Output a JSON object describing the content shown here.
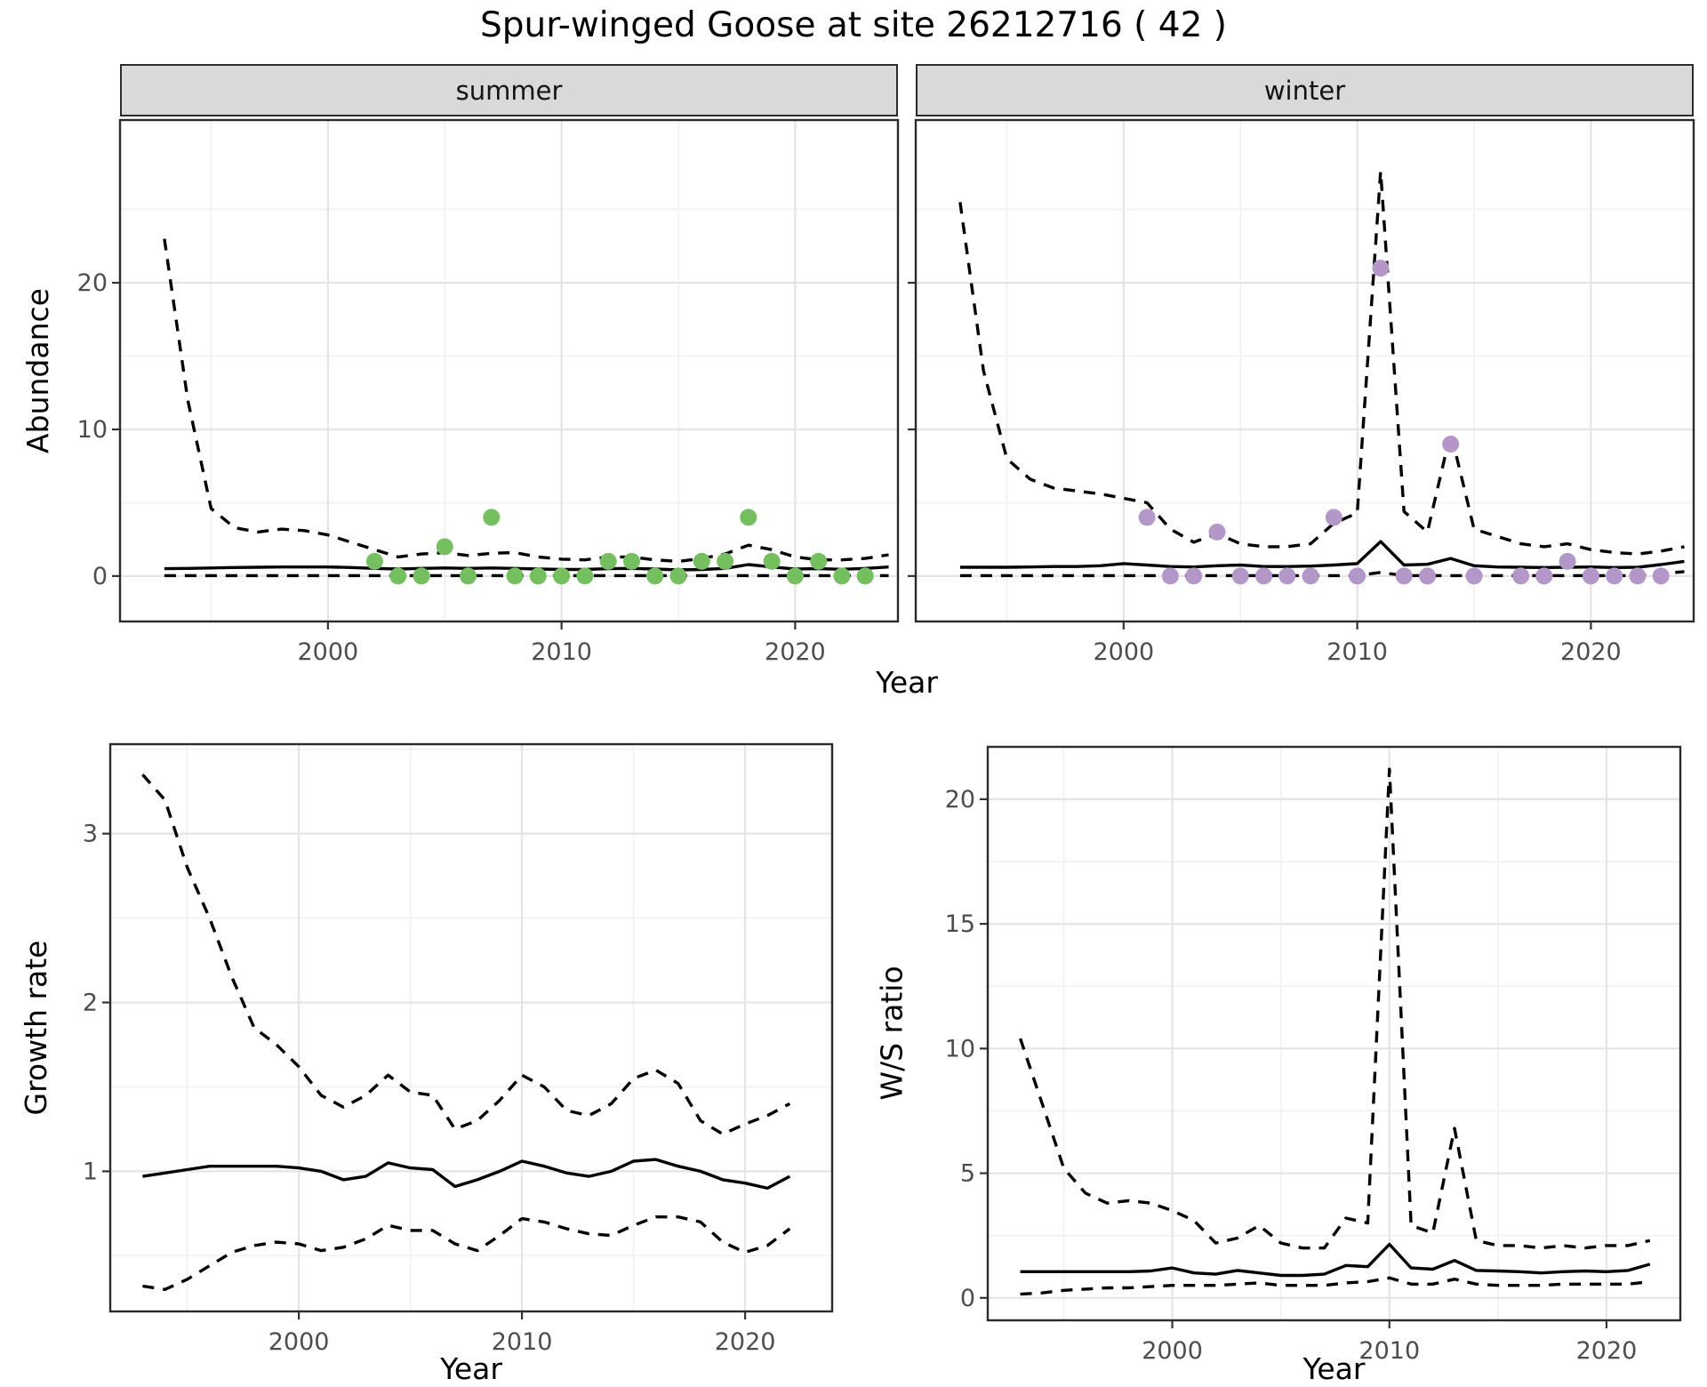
{
  "title": "Spur-winged Goose at site 26212716 ( 42 )",
  "facets": {
    "summer": "summer",
    "winter": "winter"
  },
  "axis_titles": {
    "abundance": "Abundance",
    "year_top": "Year",
    "growth_rate": "Growth rate",
    "year_bottom_left": "Year",
    "ws_ratio": "W/S ratio",
    "year_bottom_right": "Year"
  },
  "colors": {
    "summer_point": "#74c05e",
    "winter_point": "#b497c9",
    "line": "#000000",
    "panel_border": "#2b2b2b",
    "grid_major": "#e4e4e4",
    "grid_minor": "#f1f1f1",
    "tick_text": "#4d4d4d",
    "strip_bg": "#d9d9d9"
  },
  "chart_data": [
    {
      "id": "abundance-summer",
      "type": "line",
      "facet": "summer",
      "xlabel": "Year",
      "ylabel": "Abundance",
      "xlim": [
        1991.1,
        2024.4
      ],
      "ylim": [
        -3.1,
        31.1
      ],
      "xticks": [
        2000,
        2010,
        2020
      ],
      "xticks_minor": [
        1995,
        2005,
        2015
      ],
      "yticks": [
        0,
        10,
        20
      ],
      "yticks_minor": [
        5,
        15,
        25
      ],
      "ytick_labels": true,
      "x": [
        1993,
        1994,
        1995,
        1996,
        1997,
        1998,
        1999,
        2000,
        2001,
        2002,
        2003,
        2004,
        2005,
        2006,
        2007,
        2008,
        2009,
        2010,
        2011,
        2012,
        2013,
        2014,
        2015,
        2016,
        2017,
        2018,
        2019,
        2020,
        2021,
        2022,
        2023,
        2024
      ],
      "series": [
        {
          "name": "fit",
          "style": "solid",
          "values": [
            0.5,
            0.52,
            0.55,
            0.58,
            0.6,
            0.62,
            0.62,
            0.62,
            0.58,
            0.52,
            0.48,
            0.52,
            0.55,
            0.52,
            0.55,
            0.52,
            0.48,
            0.45,
            0.45,
            0.5,
            0.52,
            0.48,
            0.42,
            0.45,
            0.52,
            0.78,
            0.62,
            0.48,
            0.5,
            0.46,
            0.52,
            0.62
          ]
        },
        {
          "name": "upper_ci",
          "style": "dashed",
          "values": [
            23,
            12,
            4.6,
            3.3,
            3.0,
            3.2,
            3.1,
            2.8,
            2.3,
            1.8,
            1.3,
            1.5,
            1.6,
            1.4,
            1.55,
            1.6,
            1.3,
            1.15,
            1.1,
            1.3,
            1.3,
            1.1,
            1.0,
            1.2,
            1.5,
            2.1,
            1.8,
            1.3,
            1.1,
            1.1,
            1.2,
            1.45
          ]
        },
        {
          "name": "lower_ci",
          "style": "dashed",
          "values": [
            0.03,
            0.03,
            0.03,
            0.03,
            0.03,
            0.03,
            0.03,
            0.03,
            0.03,
            0.03,
            0.03,
            0.03,
            0.03,
            0.03,
            0.03,
            0.03,
            0.03,
            0.03,
            0.03,
            0.03,
            0.03,
            0.03,
            0.03,
            0.03,
            0.03,
            0.03,
            0.03,
            0.03,
            0.03,
            0.03,
            0.03,
            0.03
          ]
        }
      ],
      "points": [
        [
          2002,
          1
        ],
        [
          2003,
          0
        ],
        [
          2004,
          0
        ],
        [
          2005,
          2
        ],
        [
          2006,
          0
        ],
        [
          2007,
          4
        ],
        [
          2008,
          0
        ],
        [
          2009,
          0
        ],
        [
          2010,
          0
        ],
        [
          2011,
          0
        ],
        [
          2012,
          1
        ],
        [
          2013,
          1
        ],
        [
          2014,
          0
        ],
        [
          2015,
          0
        ],
        [
          2016,
          1
        ],
        [
          2017,
          1
        ],
        [
          2018,
          4
        ],
        [
          2019,
          1
        ],
        [
          2020,
          0
        ],
        [
          2021,
          1
        ],
        [
          2022,
          0
        ],
        [
          2023,
          0
        ]
      ],
      "point_color": "#74c05e"
    },
    {
      "id": "abundance-winter",
      "type": "line",
      "facet": "winter",
      "xlabel": "Year",
      "ylabel": "Abundance",
      "xlim": [
        1991.1,
        2024.4
      ],
      "ylim": [
        -3.1,
        31.1
      ],
      "xticks": [
        2000,
        2010,
        2020
      ],
      "xticks_minor": [
        1995,
        2005,
        2015
      ],
      "yticks": [
        0,
        10,
        20
      ],
      "yticks_minor": [
        5,
        15,
        25
      ],
      "ytick_labels": false,
      "x": [
        1993,
        1994,
        1995,
        1996,
        1997,
        1998,
        1999,
        2000,
        2001,
        2002,
        2003,
        2004,
        2005,
        2006,
        2007,
        2008,
        2009,
        2010,
        2011,
        2012,
        2013,
        2014,
        2015,
        2016,
        2017,
        2018,
        2019,
        2020,
        2021,
        2022,
        2023,
        2024
      ],
      "series": [
        {
          "name": "fit",
          "style": "solid",
          "values": [
            0.6,
            0.6,
            0.6,
            0.62,
            0.65,
            0.65,
            0.7,
            0.85,
            0.75,
            0.65,
            0.62,
            0.7,
            0.75,
            0.65,
            0.65,
            0.68,
            0.75,
            0.85,
            2.35,
            0.75,
            0.8,
            1.2,
            0.7,
            0.62,
            0.6,
            0.58,
            0.6,
            0.62,
            0.58,
            0.6,
            0.78,
            1.0
          ]
        },
        {
          "name": "upper_ci",
          "style": "dashed",
          "values": [
            25.5,
            14,
            8,
            6.6,
            6,
            5.8,
            5.6,
            5.3,
            5.0,
            3.2,
            2.3,
            2.9,
            2.2,
            2.0,
            2.0,
            2.2,
            3.6,
            4.3,
            27.6,
            4.4,
            3.0,
            9.8,
            3.2,
            2.7,
            2.2,
            2.0,
            2.2,
            1.8,
            1.6,
            1.5,
            1.7,
            2.0
          ]
        },
        {
          "name": "lower_ci",
          "style": "dashed",
          "values": [
            0.03,
            0.03,
            0.03,
            0.03,
            0.03,
            0.03,
            0.03,
            0.03,
            0.03,
            0.03,
            0.03,
            0.03,
            0.03,
            0.03,
            0.03,
            0.03,
            0.03,
            0.03,
            0.25,
            0.03,
            0.03,
            0.03,
            0.03,
            0.03,
            0.03,
            0.03,
            0.03,
            0.03,
            0.03,
            0.03,
            0.15,
            0.3
          ]
        }
      ],
      "points": [
        [
          2001,
          4
        ],
        [
          2002,
          0
        ],
        [
          2003,
          0
        ],
        [
          2004,
          3
        ],
        [
          2005,
          0
        ],
        [
          2006,
          0
        ],
        [
          2007,
          0
        ],
        [
          2008,
          0
        ],
        [
          2009,
          4
        ],
        [
          2010,
          0
        ],
        [
          2011,
          21
        ],
        [
          2012,
          0
        ],
        [
          2013,
          0
        ],
        [
          2014,
          9
        ],
        [
          2015,
          0
        ],
        [
          2017,
          0
        ],
        [
          2018,
          0
        ],
        [
          2019,
          1
        ],
        [
          2020,
          0
        ],
        [
          2021,
          0
        ],
        [
          2022,
          0
        ],
        [
          2023,
          0
        ]
      ],
      "point_color": "#b497c9"
    },
    {
      "id": "growth-rate",
      "type": "line",
      "xlabel": "Year",
      "ylabel": "Growth rate",
      "xlim": [
        1991.55,
        2023.9
      ],
      "ylim": [
        0.17,
        3.53
      ],
      "xticks": [
        2000,
        2010,
        2020
      ],
      "xticks_minor": [
        1995,
        2005,
        2015
      ],
      "yticks": [
        1,
        2,
        3
      ],
      "yticks_minor": [
        0.5,
        1.5,
        2.5,
        3.5
      ],
      "ytick_labels": true,
      "x": [
        1993,
        1994,
        1995,
        1996,
        1997,
        1998,
        1999,
        2000,
        2001,
        2002,
        2003,
        2004,
        2005,
        2006,
        2007,
        2008,
        2009,
        2010,
        2011,
        2012,
        2013,
        2014,
        2015,
        2016,
        2017,
        2018,
        2019,
        2020,
        2021,
        2022
      ],
      "series": [
        {
          "name": "fit",
          "style": "solid",
          "values": [
            0.97,
            0.99,
            1.01,
            1.03,
            1.03,
            1.03,
            1.03,
            1.02,
            1.0,
            0.95,
            0.97,
            1.05,
            1.02,
            1.01,
            0.91,
            0.95,
            1.0,
            1.06,
            1.03,
            0.99,
            0.97,
            1.0,
            1.06,
            1.07,
            1.03,
            1.0,
            0.95,
            0.93,
            0.9,
            0.97
          ]
        },
        {
          "name": "upper_ci",
          "style": "dashed",
          "values": [
            3.35,
            3.2,
            2.8,
            2.5,
            2.15,
            1.85,
            1.75,
            1.62,
            1.45,
            1.38,
            1.45,
            1.57,
            1.47,
            1.45,
            1.25,
            1.3,
            1.42,
            1.57,
            1.5,
            1.36,
            1.33,
            1.4,
            1.55,
            1.6,
            1.52,
            1.3,
            1.22,
            1.28,
            1.33,
            1.4
          ]
        },
        {
          "name": "lower_ci",
          "style": "dashed",
          "values": [
            0.32,
            0.3,
            0.36,
            0.44,
            0.52,
            0.56,
            0.58,
            0.57,
            0.53,
            0.55,
            0.6,
            0.68,
            0.65,
            0.65,
            0.57,
            0.53,
            0.62,
            0.72,
            0.7,
            0.66,
            0.63,
            0.62,
            0.68,
            0.73,
            0.73,
            0.7,
            0.58,
            0.52,
            0.56,
            0.66
          ]
        }
      ],
      "points": [],
      "point_color": "#74c05e"
    },
    {
      "id": "ws-ratio",
      "type": "line",
      "xlabel": "Year",
      "ylabel": "W/S ratio",
      "xlim": [
        1991.5,
        2023.4
      ],
      "ylim": [
        -0.9,
        22.1
      ],
      "xticks": [
        2000,
        2010,
        2020
      ],
      "xticks_minor": [
        1995,
        2005,
        2015
      ],
      "yticks": [
        0,
        5,
        10,
        15,
        20
      ],
      "yticks_minor": [
        2.5,
        7.5,
        12.5,
        17.5
      ],
      "ytick_labels": true,
      "x": [
        1993,
        1994,
        1995,
        1996,
        1997,
        1998,
        1999,
        2000,
        2001,
        2002,
        2003,
        2004,
        2005,
        2006,
        2007,
        2008,
        2009,
        2010,
        2011,
        2012,
        2013,
        2014,
        2015,
        2016,
        2017,
        2018,
        2019,
        2020,
        2021,
        2022
      ],
      "series": [
        {
          "name": "fit",
          "style": "solid",
          "values": [
            1.05,
            1.05,
            1.05,
            1.05,
            1.05,
            1.05,
            1.08,
            1.2,
            1.0,
            0.95,
            1.1,
            1.0,
            0.9,
            0.9,
            0.95,
            1.3,
            1.25,
            2.15,
            1.2,
            1.15,
            1.5,
            1.1,
            1.08,
            1.05,
            1.0,
            1.05,
            1.08,
            1.05,
            1.1,
            1.35
          ]
        },
        {
          "name": "upper_ci",
          "style": "dashed",
          "values": [
            10.4,
            7.8,
            5.2,
            4.2,
            3.8,
            3.9,
            3.8,
            3.5,
            3.1,
            2.2,
            2.4,
            2.9,
            2.2,
            2.0,
            2.0,
            3.2,
            3.0,
            21.2,
            2.9,
            2.6,
            6.8,
            2.3,
            2.1,
            2.1,
            2.0,
            2.1,
            2.0,
            2.1,
            2.1,
            2.3
          ]
        },
        {
          "name": "lower_ci",
          "style": "dashed",
          "values": [
            0.15,
            0.2,
            0.3,
            0.35,
            0.4,
            0.4,
            0.45,
            0.5,
            0.5,
            0.5,
            0.55,
            0.6,
            0.5,
            0.5,
            0.5,
            0.6,
            0.65,
            0.8,
            0.55,
            0.55,
            0.75,
            0.55,
            0.5,
            0.5,
            0.5,
            0.55,
            0.55,
            0.55,
            0.55,
            0.65
          ]
        }
      ],
      "points": [],
      "point_color": "#b497c9"
    }
  ]
}
